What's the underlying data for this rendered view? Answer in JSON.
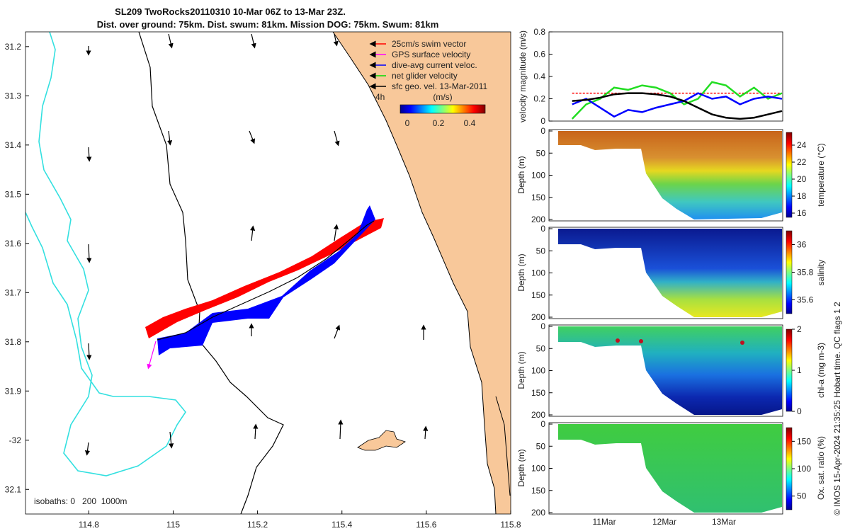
{
  "title": {
    "line1": "SL209 TwoRocks20110310 10-Mar 06Z to 13-Mar 23Z.",
    "line2": "Dist. over ground: 75km. Dist. swum: 81km. Mission DOG: 75km. Swum: 81km"
  },
  "map": {
    "legend": [
      {
        "label": "25cm/s swim vector",
        "color": "#ff0000"
      },
      {
        "label": "GPS surface velocity",
        "color": "#ff00ff"
      },
      {
        "label": "dive-avg current veloc.",
        "color": "#0000ff"
      },
      {
        "label": "net glider velocity",
        "color": "#00dd00"
      },
      {
        "label": "sfc geo. vel. 13-Mar-2011",
        "color": "#000000"
      }
    ],
    "time_label": "4h",
    "colorbar": {
      "unit": "(m/s)",
      "ticks": [
        0,
        0.2,
        0.4
      ]
    },
    "isobaths_label": "isobaths: 0   200  1000m",
    "colors": {
      "land": "#f8c89a",
      "track_red": "#ff0000",
      "track_blue": "#0000ff",
      "isobath_1000": "#33e0e0"
    }
  },
  "side_note": "© IMOS 15-Apr-2024 21:35:25 Hobart time. QC flags 1  2",
  "chart_data": [
    {
      "type": "line",
      "id": "map-axes",
      "xlabel": "",
      "ylabel": "",
      "xlim": [
        114.65,
        115.8
      ],
      "ylim": [
        -32.15,
        -31.17
      ],
      "x_ticks": [
        114.8,
        115,
        115.2,
        115.4,
        115.6,
        115.8
      ],
      "y_ticks": [
        -31.2,
        -31.3,
        -31.4,
        -31.5,
        -31.6,
        -31.7,
        -31.8,
        -31.9,
        -32,
        -32.1
      ],
      "y_tick_labels": [
        "31.2",
        "31.3",
        "31.4",
        "31.5",
        "31.6",
        "31.7",
        "31.8",
        "31.9",
        "-32",
        "32.1"
      ],
      "series": [
        {
          "name": "glider track",
          "x": [
            114.95,
            115.02,
            115.12,
            115.22,
            115.32,
            115.42,
            115.49
          ],
          "y": [
            -31.8,
            -31.78,
            -31.73,
            -31.69,
            -31.66,
            -31.61,
            -31.56
          ]
        }
      ]
    },
    {
      "type": "line",
      "id": "velocity",
      "ylabel": "velocity magnitude (m/s)",
      "ylim": [
        0,
        0.8
      ],
      "y_ticks": [
        0,
        0.2,
        0.4,
        0.6,
        0.8
      ],
      "x_ticks": [
        "11Mar",
        "12Mar",
        "13Mar"
      ],
      "x": [
        0.25,
        0.5,
        0.75,
        1.0,
        1.25,
        1.5,
        1.75,
        2.0,
        2.25,
        2.5,
        2.75,
        3.0,
        3.25,
        3.5,
        3.75,
        4.0
      ],
      "series": [
        {
          "name": "swim vector",
          "color": "#ff0000",
          "values": [
            0.25,
            0.25,
            0.25,
            0.25,
            0.25,
            0.25,
            0.25,
            0.25,
            0.25,
            0.25,
            0.25,
            0.25,
            0.25,
            0.25,
            0.25,
            0.25
          ]
        },
        {
          "name": "net glider velocity",
          "color": "#22dd22",
          "values": [
            0.02,
            0.15,
            0.2,
            0.3,
            0.28,
            0.32,
            0.3,
            0.25,
            0.15,
            0.2,
            0.35,
            0.32,
            0.22,
            0.3,
            0.2,
            0.25
          ]
        },
        {
          "name": "dive-avg current veloc.",
          "color": "#0000ff",
          "values": [
            0.15,
            0.2,
            0.12,
            0.04,
            0.1,
            0.08,
            0.12,
            0.15,
            0.18,
            0.25,
            0.2,
            0.22,
            0.15,
            0.2,
            0.22,
            0.2
          ]
        },
        {
          "name": "sfc geo. vel.",
          "color": "#000000",
          "values": [
            0.18,
            0.19,
            0.21,
            0.24,
            0.25,
            0.25,
            0.24,
            0.22,
            0.18,
            0.12,
            0.06,
            0.03,
            0.02,
            0.03,
            0.06,
            0.09
          ]
        }
      ]
    },
    {
      "type": "heatmap",
      "id": "temperature",
      "ylabel": "Depth (m)",
      "cbar_label": "temperature (°C)",
      "ylim": [
        200,
        0
      ],
      "y_ticks": [
        0,
        50,
        100,
        150,
        200
      ],
      "cbar_ticks": [
        16,
        18,
        20,
        22,
        24
      ],
      "clim": [
        15.5,
        25.5
      ]
    },
    {
      "type": "heatmap",
      "id": "salinity",
      "ylabel": "Depth (m)",
      "cbar_label": "salinity",
      "ylim": [
        200,
        0
      ],
      "y_ticks": [
        0,
        50,
        100,
        150,
        200
      ],
      "cbar_ticks": [
        35.6,
        35.8,
        36
      ],
      "clim": [
        35.5,
        36.1
      ]
    },
    {
      "type": "heatmap",
      "id": "chla",
      "ylabel": "Depth (m)",
      "cbar_label": "chl-a (mg m-3)",
      "ylim": [
        200,
        0
      ],
      "y_ticks": [
        0,
        50,
        100,
        150,
        200
      ],
      "cbar_ticks": [
        0,
        1,
        2
      ],
      "clim": [
        0,
        2
      ]
    },
    {
      "type": "heatmap",
      "id": "oxsat",
      "ylabel": "Depth (m)",
      "cbar_label": "Ox. sat. ratio (%)",
      "ylim": [
        200,
        0
      ],
      "y_ticks": [
        0,
        50,
        100,
        150,
        200
      ],
      "cbar_ticks": [
        50,
        100,
        150
      ],
      "clim": [
        25,
        175
      ]
    }
  ]
}
